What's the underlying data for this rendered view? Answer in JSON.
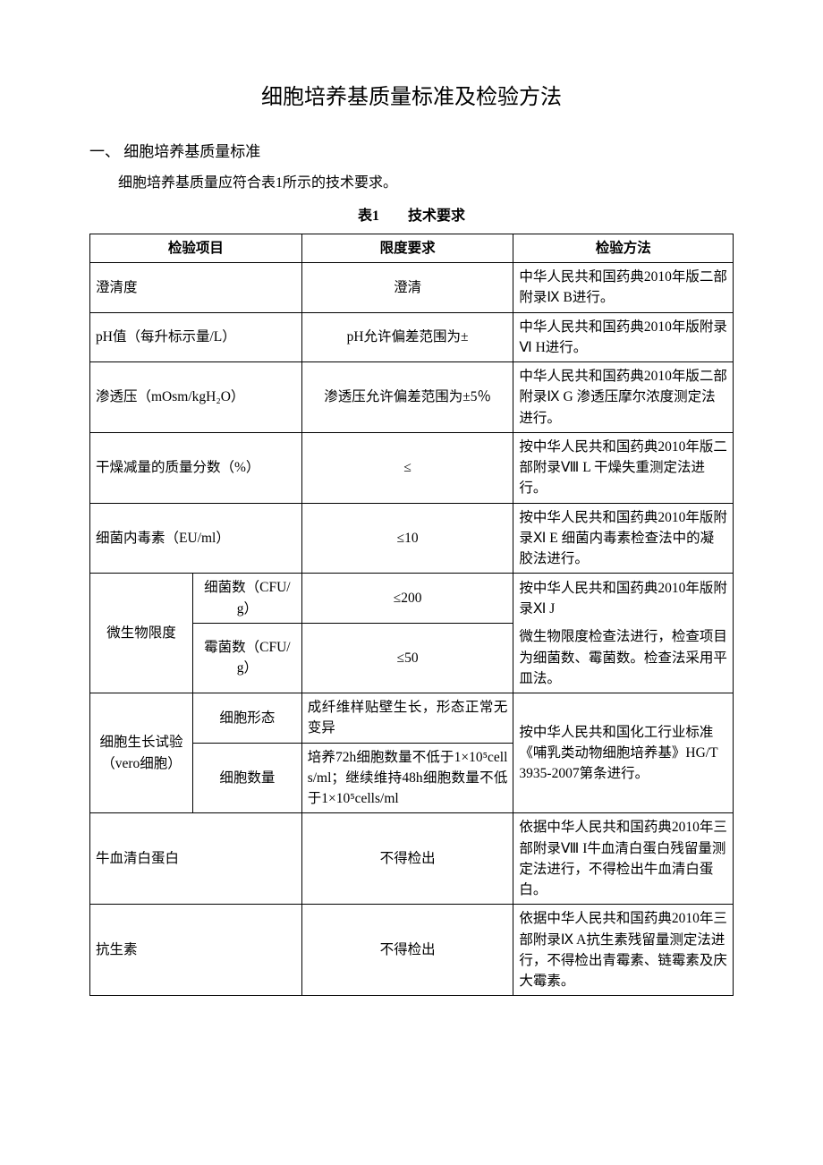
{
  "doc": {
    "title": "细胞培养基质量标准及检验方法",
    "section1_heading": "一、 细胞培养基质量标准",
    "section1_body": "细胞培养基质量应符合表1所示的技术要求。",
    "table_caption": "表1　　技术要求"
  },
  "headers": {
    "col1": "检验项目",
    "col2": "限度要求",
    "col3": "检验方法"
  },
  "rows": {
    "r1": {
      "item": "澄清度",
      "limit": "澄清",
      "method": "中华人民共和国药典2010年版二部附录Ⅸ B进行。"
    },
    "r2": {
      "item": "pH值（每升标示量/L）",
      "limit": "pH允许偏差范围为±",
      "method": "中华人民共和国药典2010年版附录Ⅵ H进行。"
    },
    "r3": {
      "item": "渗透压（mOsm/kgH₂O）",
      "limit": "渗透压允许偏差范围为±5％",
      "method": "中华人民共和国药典2010年版二部附录Ⅸ G 渗透压摩尔浓度测定法进行。"
    },
    "r4": {
      "item": "干燥减量的质量分数（%）",
      "limit": "≤",
      "method": "按中华人民共和国药典2010年版二部附录Ⅷ L 干燥失重测定法进行。"
    },
    "r5": {
      "item": "细菌内毒素（EU/ml）",
      "limit": "≤10",
      "method": "按中华人民共和国药典2010年版附录Ⅺ E 细菌内毒素检查法中的凝胶法进行。"
    },
    "r6": {
      "group": "微生物限度",
      "sub1": "细菌数（CFU/g）",
      "limit1": "≤200",
      "sub2": "霉菌数（CFU/g）",
      "limit2": "≤50",
      "method_a": "按中华人民共和国药典2010年版附录Ⅺ J",
      "method_b": "微生物限度检查法进行，检查项目为细菌数、霉菌数。检查法采用平皿法。"
    },
    "r7": {
      "group": "细胞生长试验（vero细胞）",
      "sub1": "细胞形态",
      "limit1": "成纤维样贴壁生长，形态正常无变异",
      "sub2": "细胞数量",
      "limit2": "培养72h细胞数量不低于1×10⁵cells/ml；继续维持48h细胞数量不低于1×10⁵cells/ml",
      "method": "按中华人民共和国化工行业标准《哺乳类动物细胞培养基》HG/T 3935-2007第条进行。"
    },
    "r8": {
      "item": "牛血清白蛋白",
      "limit": "不得检出",
      "method": "依据中华人民共和国药典2010年三部附录Ⅷ I牛血清白蛋白残留量测定法进行，不得检出牛血清白蛋白。"
    },
    "r9": {
      "item": "抗生素",
      "limit": "不得检出",
      "method": "依据中华人民共和国药典2010年三部附录Ⅸ A抗生素残留量测定法进行，不得检出青霉素、链霉素及庆大霉素。"
    }
  }
}
